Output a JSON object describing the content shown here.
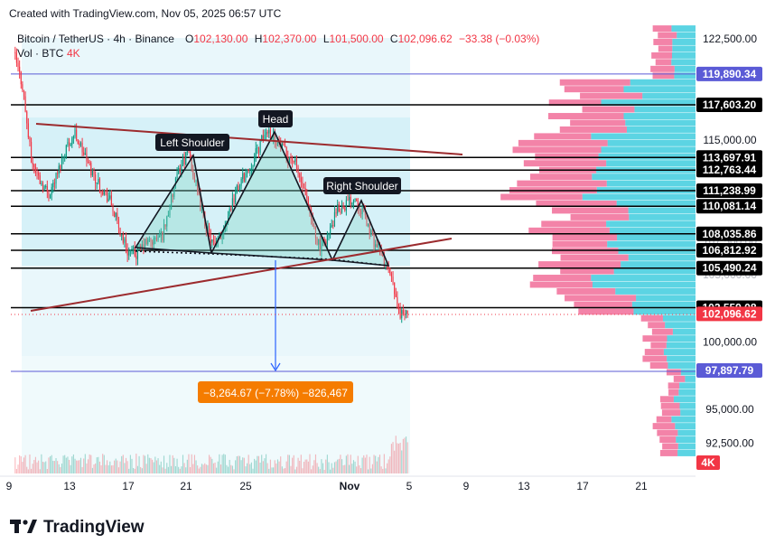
{
  "header": {
    "created_with": "Created with TradingView.com, Nov 05, 2025 06:57 UTC",
    "symbol": "Bitcoin / TetherUS · 4h · Binance",
    "ohlc": {
      "o_label": "O",
      "o": "102,130.00",
      "h_label": "H",
      "h": "102,370.00",
      "l_label": "L",
      "l": "101,500.00",
      "c_label": "C",
      "c": "102,096.62",
      "change": "−33.38 (−0.03%)"
    },
    "volume_label": "Vol · BTC",
    "volume_value": "4K"
  },
  "footer": {
    "logo_text": "TradingView"
  },
  "colors": {
    "up": "#089981",
    "down": "#f23645",
    "accent_blue": "#2962ff",
    "resistance": "#9c2b2e",
    "level_line": "#000000",
    "vp_up": "#26c6da",
    "vp_down": "#ec407a",
    "measure": "#f57c00",
    "last_price": "#f23645",
    "target": "#5b5bd6"
  },
  "chart_data": {
    "type": "candlestick",
    "title": "Bitcoin / TetherUS · 4h · Binance",
    "pattern": "head-and-shoulders",
    "x_ticks": [
      "9",
      "13",
      "17",
      "21",
      "25",
      "Nov",
      "5",
      "9",
      "13",
      "17",
      "21"
    ],
    "y_ticks": [
      "122,500.00",
      "115,000.00",
      "100,000.00",
      "95,000.00",
      "92,500.00"
    ],
    "y_ticks_partial": [
      "105,000.00",
      "107,500.00"
    ],
    "ylim": [
      90800,
      124000
    ],
    "horizontal_levels": [
      "119,890.34",
      "117,603.20",
      "113,697.91",
      "112,763.44",
      "111,238.99",
      "110,081.14",
      "108,035.86",
      "106,812.92",
      "105,490.24",
      "102,559.08"
    ],
    "last_price": "102,096.62",
    "target_price": "97,897.79",
    "volume_axis_label": "4K",
    "annotations": {
      "left_shoulder": "Left Shoulder",
      "head": "Head",
      "right_shoulder": "Right Shoulder",
      "measure": "−8,264.67 (−7.78%) −826,467"
    },
    "price_path": [
      [
        0,
        121500
      ],
      [
        1,
        119000
      ],
      [
        2,
        113500
      ],
      [
        3,
        112000
      ],
      [
        4,
        111000
      ],
      [
        5,
        112500
      ],
      [
        6,
        114500
      ],
      [
        7,
        115500
      ],
      [
        8,
        114000
      ],
      [
        9,
        112500
      ],
      [
        10,
        111500
      ],
      [
        11,
        110500
      ],
      [
        12,
        108500
      ],
      [
        13,
        106800
      ],
      [
        14,
        106500
      ],
      [
        15,
        107300
      ],
      [
        16,
        107500
      ],
      [
        17,
        108000
      ],
      [
        18,
        110500
      ],
      [
        19,
        113000
      ],
      [
        20,
        114200
      ],
      [
        21,
        111000
      ],
      [
        22,
        108500
      ],
      [
        23,
        106900
      ],
      [
        24,
        108500
      ],
      [
        25,
        110500
      ],
      [
        26,
        112000
      ],
      [
        27,
        113000
      ],
      [
        28,
        114500
      ],
      [
        29,
        115800
      ],
      [
        30,
        115000
      ],
      [
        31,
        114000
      ],
      [
        32,
        113500
      ],
      [
        33,
        111500
      ],
      [
        34,
        109000
      ],
      [
        35,
        107000
      ],
      [
        36,
        108000
      ],
      [
        37,
        109800
      ],
      [
        38,
        110300
      ],
      [
        39,
        110800
      ],
      [
        40,
        109500
      ],
      [
        41,
        107700
      ],
      [
        42,
        106500
      ],
      [
        43,
        105000
      ],
      [
        44,
        102200
      ],
      [
        45,
        102096.62
      ]
    ]
  }
}
